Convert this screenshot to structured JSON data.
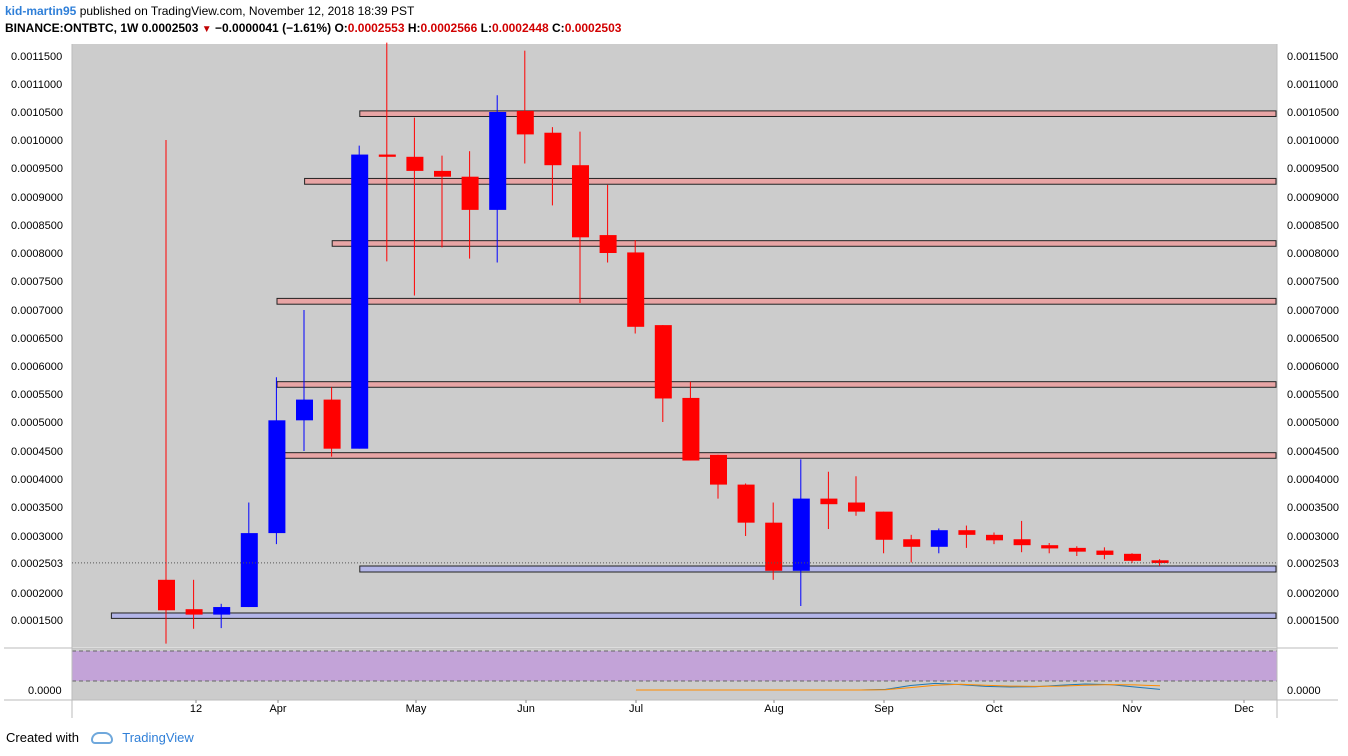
{
  "header": {
    "author": "kid-martin95",
    "published_text": "published on TradingView.com, November 12, 2018 18:39 PST",
    "symbol": "BINANCE:ONTBTC, 1W",
    "last": "0.0002503",
    "change": "−0.0000041 (−1.61%)",
    "o_label": "O:",
    "o_value": "0.0002553",
    "h_label": "H:",
    "h_value": "0.0002566",
    "l_label": "L:",
    "l_value": "0.0002448",
    "c_label": "C:",
    "c_value": "0.0002503"
  },
  "footer": {
    "created_with": "Created with",
    "brand": "TradingView"
  },
  "colors": {
    "up": "#0000ff",
    "down": "#ff0000",
    "background": "#cccccc",
    "zone_resistance": "#e8a5a5",
    "zone_support": "#b3b5e8",
    "rsi_band": "#c3a3d8"
  },
  "chart_data": {
    "type": "candlestick",
    "timeframe": "1W",
    "ylim": [
      0.000105,
      0.001175
    ],
    "y_ticks": [
      "0.0001500",
      "0.0002000",
      "0.0003000",
      "0.0003500",
      "0.0004000",
      "0.0004500",
      "0.0005000",
      "0.0005500",
      "0.0006000",
      "0.0006500",
      "0.0007000",
      "0.0007500",
      "0.0008000",
      "0.0008500",
      "0.0009000",
      "0.0009500",
      "0.0010000",
      "0.0010500",
      "0.0011000",
      "0.0011500"
    ],
    "x_labels": [
      "12",
      "Apr",
      "May",
      "Jun",
      "Jul",
      "Aug",
      "Sep",
      "Oct",
      "Nov",
      "Dec"
    ],
    "last_price_label": "0.0002503",
    "candles": [
      {
        "o": 0.000222,
        "h": 0.001,
        "l": 0.000115,
        "c": 0.000168
      },
      {
        "o": 0.00017,
        "h": 0.000222,
        "l": 0.000137,
        "c": 0.00016
      },
      {
        "o": 0.00016,
        "h": 0.00018,
        "l": 0.000138,
        "c": 0.000174
      },
      {
        "o": 0.000174,
        "h": 0.000358,
        "l": 0.000174,
        "c": 0.000305
      },
      {
        "o": 0.000305,
        "h": 0.00058,
        "l": 0.000285,
        "c": 0.000503
      },
      {
        "o": 0.000503,
        "h": 0.0007,
        "l": 0.00045,
        "c": 0.00054
      },
      {
        "o": 0.00054,
        "h": 0.000562,
        "l": 0.00044,
        "c": 0.000454
      },
      {
        "o": 0.000454,
        "h": 0.00099,
        "l": 0.000454,
        "c": 0.000974
      },
      {
        "o": 0.000974,
        "h": 0.001175,
        "l": 0.000785,
        "c": 0.00097
      },
      {
        "o": 0.00097,
        "h": 0.00104,
        "l": 0.000725,
        "c": 0.000945
      },
      {
        "o": 0.000945,
        "h": 0.000972,
        "l": 0.00081,
        "c": 0.000935
      },
      {
        "o": 0.000935,
        "h": 0.00098,
        "l": 0.00079,
        "c": 0.000877
      },
      {
        "o": 0.000877,
        "h": 0.00108,
        "l": 0.000783,
        "c": 0.00105
      },
      {
        "o": 0.001052,
        "h": 0.00116,
        "l": 0.000958,
        "c": 0.00101
      },
      {
        "o": 0.001013,
        "h": 0.001023,
        "l": 0.000885,
        "c": 0.000955
      },
      {
        "o": 0.000955,
        "h": 0.001015,
        "l": 0.000712,
        "c": 0.000828
      },
      {
        "o": 0.000832,
        "h": 0.000921,
        "l": 0.000783,
        "c": 0.0008
      },
      {
        "o": 0.000801,
        "h": 0.000823,
        "l": 0.000658,
        "c": 0.00067
      },
      {
        "o": 0.000673,
        "h": 0.000673,
        "l": 0.0005,
        "c": 0.000542
      },
      {
        "o": 0.000543,
        "h": 0.000572,
        "l": 0.000433,
        "c": 0.000433
      },
      {
        "o": 0.000443,
        "h": 0.000443,
        "l": 0.000365,
        "c": 0.00039
      },
      {
        "o": 0.00039,
        "h": 0.000392,
        "l": 0.0003,
        "c": 0.000323
      },
      {
        "o": 0.000323,
        "h": 0.000358,
        "l": 0.000222,
        "c": 0.000237
      },
      {
        "o": 0.000237,
        "h": 0.000435,
        "l": 0.000176,
        "c": 0.000365
      },
      {
        "o": 0.000365,
        "h": 0.000413,
        "l": 0.000312,
        "c": 0.000355
      },
      {
        "o": 0.000358,
        "h": 0.000405,
        "l": 0.000335,
        "c": 0.000342
      },
      {
        "o": 0.000342,
        "h": 0.000342,
        "l": 0.000268,
        "c": 0.000293
      },
      {
        "o": 0.000294,
        "h": 0.000302,
        "l": 0.000251,
        "c": 0.00028
      },
      {
        "o": 0.00028,
        "h": 0.000313,
        "l": 0.000268,
        "c": 0.00031
      },
      {
        "o": 0.00031,
        "h": 0.000318,
        "l": 0.000278,
        "c": 0.000302
      },
      {
        "o": 0.000302,
        "h": 0.000306,
        "l": 0.000285,
        "c": 0.000292
      },
      {
        "o": 0.000294,
        "h": 0.000326,
        "l": 0.00027,
        "c": 0.000283
      },
      {
        "o": 0.000283,
        "h": 0.000287,
        "l": 0.000268,
        "c": 0.000277
      },
      {
        "o": 0.000278,
        "h": 0.000281,
        "l": 0.000263,
        "c": 0.000271
      },
      {
        "o": 0.000273,
        "h": 0.000279,
        "l": 0.000257,
        "c": 0.000265
      },
      {
        "o": 0.000267,
        "h": 0.000268,
        "l": 0.00025,
        "c": 0.000254
      },
      {
        "o": 0.000255,
        "h": 0.000257,
        "l": 0.000245,
        "c": 0.00025
      }
    ],
    "zones": [
      {
        "kind": "resistance",
        "low": 0.001042,
        "high": 0.001052,
        "start_candle": 8
      },
      {
        "kind": "resistance",
        "low": 0.000922,
        "high": 0.000932,
        "start_candle": 6
      },
      {
        "kind": "resistance",
        "low": 0.000812,
        "high": 0.000822,
        "start_candle": 7
      },
      {
        "kind": "resistance",
        "low": 0.00071,
        "high": 0.00072,
        "start_candle": 5
      },
      {
        "kind": "resistance",
        "low": 0.000562,
        "high": 0.000572,
        "start_candle": 5
      },
      {
        "kind": "resistance",
        "low": 0.000437,
        "high": 0.000447,
        "start_candle": 5
      },
      {
        "kind": "support",
        "low": 0.000235,
        "high": 0.000245,
        "start_candle": 8
      },
      {
        "kind": "support",
        "low": 0.000153,
        "high": 0.000163,
        "start_candle": -1
      }
    ],
    "indicator_panel": {
      "tick_label": "0.0000",
      "lines": [
        {
          "color": "#1f77b4",
          "values": [
            0,
            0,
            0,
            0,
            0,
            0,
            0,
            0,
            0,
            0,
            0.002,
            0.015,
            0.022,
            0.018,
            0.012,
            0.01,
            0.011,
            0.016,
            0.02,
            0.018,
            0.01,
            0.002
          ]
        },
        {
          "color": "#ff8c00",
          "values": [
            0,
            0,
            0,
            0,
            0,
            0,
            0,
            0,
            0,
            0,
            0.001,
            0.008,
            0.016,
            0.019,
            0.016,
            0.013,
            0.012,
            0.013,
            0.016,
            0.018,
            0.017,
            0.014
          ]
        }
      ]
    }
  }
}
